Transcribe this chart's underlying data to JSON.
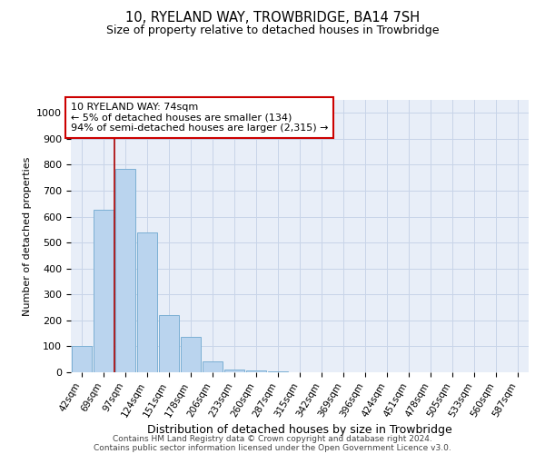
{
  "title1": "10, RYELAND WAY, TROWBRIDGE, BA14 7SH",
  "title2": "Size of property relative to detached houses in Trowbridge",
  "xlabel": "Distribution of detached houses by size in Trowbridge",
  "ylabel": "Number of detached properties",
  "categories": [
    "42sqm",
    "69sqm",
    "97sqm",
    "124sqm",
    "151sqm",
    "178sqm",
    "206sqm",
    "233sqm",
    "260sqm",
    "287sqm",
    "315sqm",
    "342sqm",
    "369sqm",
    "396sqm",
    "424sqm",
    "451sqm",
    "478sqm",
    "505sqm",
    "533sqm",
    "560sqm",
    "587sqm"
  ],
  "values": [
    100,
    625,
    785,
    540,
    220,
    135,
    42,
    12,
    8,
    3,
    0,
    0,
    0,
    0,
    0,
    0,
    0,
    0,
    0,
    0,
    0
  ],
  "bar_color": "#bad4ee",
  "bar_edge_color": "#7bafd4",
  "vline_x": 1.5,
  "vline_color": "#aa0000",
  "annotation_text": "10 RYELAND WAY: 74sqm\n← 5% of detached houses are smaller (134)\n94% of semi-detached houses are larger (2,315) →",
  "annotation_box_color": "#ffffff",
  "annotation_box_edge": "#cc0000",
  "ylim": [
    0,
    1050
  ],
  "yticks": [
    0,
    100,
    200,
    300,
    400,
    500,
    600,
    700,
    800,
    900,
    1000
  ],
  "grid_color": "#c8d4e8",
  "background_color": "#e8eef8",
  "footer_line1": "Contains HM Land Registry data © Crown copyright and database right 2024.",
  "footer_line2": "Contains public sector information licensed under the Open Government Licence v3.0."
}
